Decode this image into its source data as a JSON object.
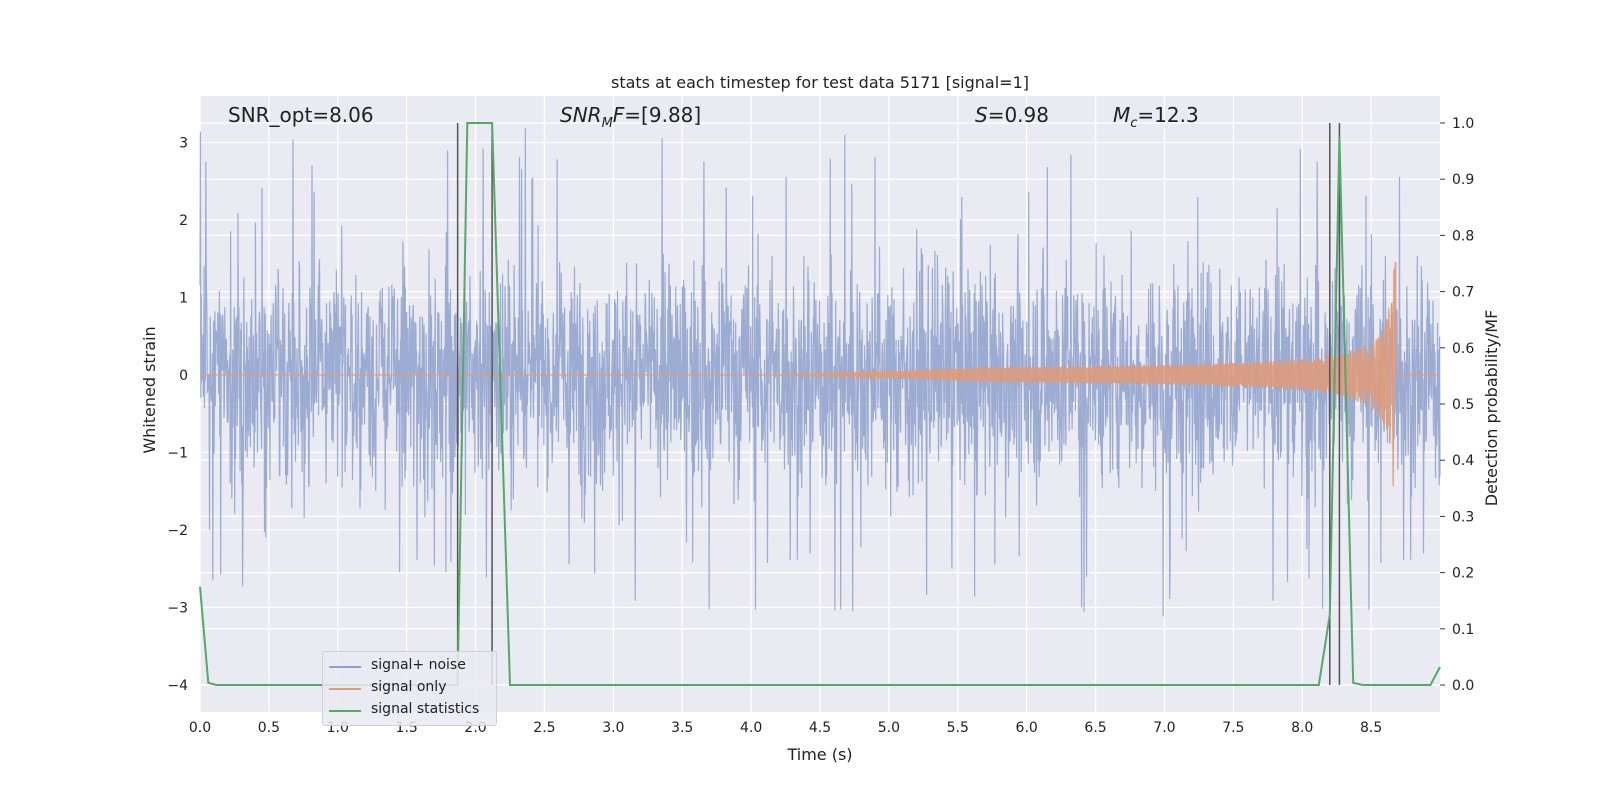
{
  "chart_data": {
    "type": "line",
    "title": "stats at each timestep for test data 5171 [signal=1]",
    "xlabel": "Time (s)",
    "ylabel_left": "Whitened strain",
    "ylabel_right": "Detection probability/MF",
    "xlim": [
      0.0,
      9.0
    ],
    "ylim_left": [
      -4.35,
      3.6
    ],
    "ylim_right": [
      -0.048,
      1.048
    ],
    "x_ticks": [
      "0.0",
      "0.5",
      "1.0",
      "1.5",
      "2.0",
      "2.5",
      "3.0",
      "3.5",
      "4.0",
      "4.5",
      "5.0",
      "5.5",
      "6.0",
      "6.5",
      "7.0",
      "7.5",
      "8.0",
      "8.5"
    ],
    "y_ticks_left": [
      "3",
      "2",
      "1",
      "0",
      "−1",
      "−2",
      "−3",
      "−4"
    ],
    "y_ticks_right": [
      "1.0",
      "0.9",
      "0.8",
      "0.7",
      "0.6",
      "0.5",
      "0.4",
      "0.3",
      "0.2",
      "0.1",
      "0.0"
    ],
    "grid": true,
    "legend_placement": "lower-left",
    "annotations": {
      "snr_opt": "SNR_opt=8.06",
      "snr_mf_prefix": "SNR",
      "snr_mf_sub": "M",
      "snr_mf_suffix": "F=[9.88]",
      "s_sym": "S",
      "s_val": "=0.98",
      "mc_sym": "M",
      "mc_sub": "c",
      "mc_val": "=12.3"
    },
    "vertical_lines_x": [
      1.87,
      2.12,
      8.2,
      8.27
    ],
    "series": [
      {
        "name": "signal+ noise",
        "color": "#8da0cb",
        "axis": "left",
        "noise_envelope": {
          "typical_abs": 1.6,
          "peak_max": 3.3,
          "peak_min": -4.0
        }
      },
      {
        "name": "signal only",
        "color": "#dd9a7c",
        "axis": "left",
        "chirp": {
          "start_x": 4.2,
          "peak_x": 8.66,
          "peak_amp": 1.45,
          "end_x": 8.68
        }
      },
      {
        "name": "signal statistics",
        "color": "#55a868",
        "axis": "right",
        "x": [
          0.0,
          0.06,
          0.12,
          1.87,
          1.94,
          2.12,
          2.25,
          8.12,
          8.2,
          8.27,
          8.37,
          8.44,
          8.93,
          9.0
        ],
        "y": [
          0.175,
          0.004,
          0.0,
          0.0,
          1.0,
          1.0,
          0.0,
          0.0,
          0.125,
          0.975,
          0.004,
          0.0,
          0.0,
          0.032
        ]
      }
    ]
  }
}
